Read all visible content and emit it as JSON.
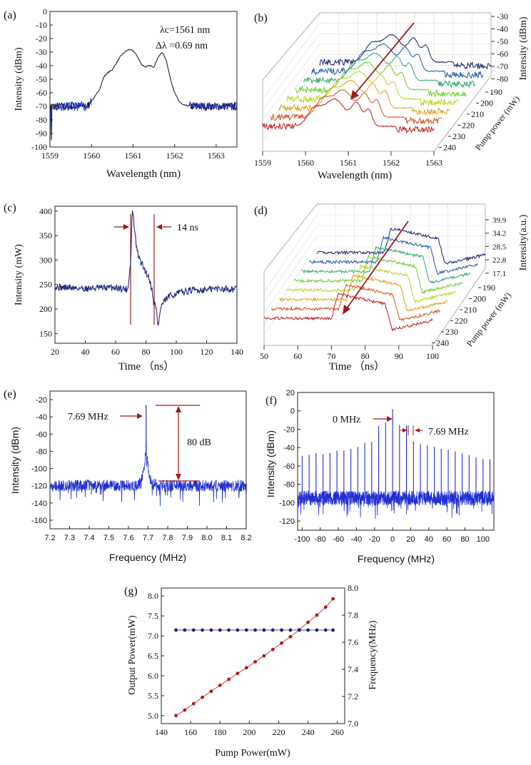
{
  "colors": {
    "trace_dark": "#1f2a7a",
    "trace_blue": "#1f2fd0",
    "annotation_red": "#a01a1a",
    "power_red": "#b01818",
    "freq_blue": "#1a1f8a",
    "waterfall": [
      "#1a1f6a",
      "#1c58a8",
      "#2aa86a",
      "#6ccc2a",
      "#b8d21a",
      "#e0a018",
      "#d05020",
      "#c01818"
    ]
  },
  "chart_data": [
    {
      "id": "a",
      "type": "line",
      "panel_label": "(a)",
      "xlabel": "Wavelength (nm)",
      "ylabel": "Intensity (dBm)",
      "xlim": [
        1559,
        1563.5
      ],
      "ylim": [
        -100,
        0
      ],
      "xticks": [
        "1559",
        "1560",
        "1561",
        "1562",
        "1563"
      ],
      "yticks": [
        "0",
        "-10",
        "-20",
        "-30",
        "-40",
        "-50",
        "-60",
        "-70",
        "-80",
        "-90",
        "-100"
      ],
      "annotations": [
        "λc=1561 nm",
        "Δλ =0.69 nm"
      ],
      "series": [
        {
          "x": [
            1559.0,
            1559.3,
            1559.6,
            1559.9,
            1560.0,
            1560.1,
            1560.2,
            1560.3,
            1560.4,
            1560.5,
            1560.6,
            1560.7,
            1560.8,
            1560.9,
            1561.0,
            1561.1,
            1561.2,
            1561.3,
            1561.4,
            1561.5,
            1561.6,
            1561.7,
            1561.8,
            1561.9,
            1562.0,
            1562.1,
            1562.2,
            1562.4,
            1562.8,
            1563.2,
            1563.5
          ],
          "y": [
            -70,
            -70,
            -70,
            -70,
            -66,
            -62,
            -57,
            -48,
            -45,
            -43,
            -38,
            -33,
            -30,
            -28,
            -29,
            -33,
            -39,
            -41,
            -40,
            -41,
            -34,
            -30,
            -36,
            -50,
            -60,
            -66,
            -69,
            -70,
            -70,
            -70,
            -70
          ]
        }
      ]
    },
    {
      "id": "b",
      "type": "line",
      "panel_label": "(b)",
      "xlabel": "Wavelength (nm)",
      "ylabel": "Intensity (dBm)",
      "zlabel": "Pump power (mW)",
      "xticks": [
        "1559",
        "1560",
        "1561",
        "1562",
        "1563"
      ],
      "yticks": [
        "-30",
        "-40",
        "-50",
        "-60",
        "-70",
        "-80"
      ],
      "zticks": [
        "190",
        "200",
        "210",
        "220",
        "230",
        "240"
      ],
      "zlim": [
        -80,
        -30
      ]
    },
    {
      "id": "c",
      "type": "line",
      "panel_label": "(c)",
      "xlabel": "Time （ns）",
      "ylabel": "Intensity (mW)",
      "xlim": [
        20,
        140
      ],
      "ylim": [
        130,
        410
      ],
      "xticks": [
        "20",
        "40",
        "60",
        "80",
        "100",
        "120",
        "140"
      ],
      "yticks": [
        "150",
        "200",
        "250",
        "300",
        "350",
        "400"
      ],
      "annotations": [
        "14 ns"
      ],
      "series": [
        {
          "x": [
            20,
            40,
            60,
            68,
            70,
            71,
            72,
            73,
            74,
            76,
            78,
            80,
            82,
            84,
            85,
            86,
            87,
            88,
            89,
            90,
            92,
            95,
            100,
            110,
            120,
            130,
            140
          ],
          "y": [
            245,
            242,
            244,
            240,
            300,
            405,
            380,
            345,
            320,
            300,
            288,
            275,
            265,
            240,
            215,
            210,
            195,
            165,
            185,
            205,
            215,
            225,
            232,
            238,
            240,
            242,
            240
          ]
        }
      ]
    },
    {
      "id": "d",
      "type": "line",
      "panel_label": "(d)",
      "xlabel": "Time （ns）",
      "ylabel": "Intensity(a.u.)",
      "zlabel": "Pump power (mW)",
      "xticks": [
        "50",
        "60",
        "70",
        "80",
        "90",
        "100"
      ],
      "yticks": [
        "39.9",
        "34.2",
        "28.5",
        "22.8",
        "17.1"
      ],
      "zticks": [
        "190",
        "200",
        "210",
        "220",
        "230",
        "240"
      ]
    },
    {
      "id": "e",
      "type": "line",
      "panel_label": "(e)",
      "xlabel": "Frequency (MHz)",
      "ylabel": "Intensity (dBm)",
      "xlim": [
        7.2,
        8.2
      ],
      "ylim": [
        -170,
        -10
      ],
      "xticks": [
        "7.2",
        "7.3",
        "7.4",
        "7.5",
        "7.6",
        "7.7",
        "7.8",
        "7.9",
        "8.0",
        "8.1",
        "8.2"
      ],
      "yticks": [
        "-20",
        "-40",
        "-60",
        "-80",
        "-100",
        "-120",
        "-140",
        "-160"
      ],
      "annotations": [
        "7.69 MHz",
        "80 dB"
      ],
      "peak": {
        "x": 7.69,
        "y": -26
      },
      "noise_floor": -120
    },
    {
      "id": "f",
      "type": "line",
      "panel_label": "(f)",
      "xlabel": "Frequency (MHz)",
      "ylabel": "Intensity (dBm)",
      "xlim": [
        -105,
        112
      ],
      "ylim": [
        -130,
        20
      ],
      "xticks": [
        "-100",
        "-80",
        "-60",
        "-40",
        "-20",
        "0",
        "20",
        "40",
        "60",
        "80",
        "100"
      ],
      "yticks": [
        "20",
        "0",
        "-20",
        "-40",
        "-60",
        "-80",
        "-100",
        "-120"
      ],
      "annotations": [
        "0 MHz",
        "7.69 MHz"
      ],
      "harmonic_spacing": 7.69,
      "center_peak": 0,
      "noise_floor": -95
    },
    {
      "id": "g",
      "type": "scatter",
      "panel_label": "(g)",
      "xlabel": "Pump Power(mW)",
      "ylabel": "Output Power(mW)",
      "y2label": "Frequency(MHz)",
      "xlim": [
        140,
        265
      ],
      "ylim": [
        4.8,
        8.2
      ],
      "y2lim": [
        7.0,
        8.0
      ],
      "xticks": [
        "140",
        "160",
        "180",
        "200",
        "220",
        "240",
        "260"
      ],
      "yticks": [
        "5.0",
        "5.5",
        "6.0",
        "6.5",
        "7.0",
        "7.5",
        "8.0"
      ],
      "y2ticks": [
        "7.0",
        "7.2",
        "7.4",
        "7.6",
        "7.8",
        "8.0"
      ],
      "series": [
        {
          "axis": "left",
          "x": [
            150,
            156,
            162,
            168,
            174,
            180,
            186,
            192,
            198,
            204,
            210,
            216,
            222,
            228,
            234,
            240,
            246,
            252,
            257
          ],
          "y": [
            5.0,
            5.14,
            5.3,
            5.46,
            5.61,
            5.76,
            5.91,
            6.06,
            6.2,
            6.35,
            6.5,
            6.66,
            6.82,
            6.98,
            7.15,
            7.34,
            7.52,
            7.72,
            7.93
          ]
        },
        {
          "axis": "right",
          "x": [
            150,
            156,
            162,
            168,
            174,
            180,
            186,
            192,
            198,
            204,
            210,
            216,
            222,
            228,
            234,
            240,
            246,
            252,
            257
          ],
          "y": [
            7.69,
            7.69,
            7.69,
            7.69,
            7.69,
            7.69,
            7.69,
            7.69,
            7.69,
            7.69,
            7.69,
            7.69,
            7.69,
            7.69,
            7.69,
            7.69,
            7.69,
            7.69,
            7.69
          ]
        }
      ]
    }
  ]
}
